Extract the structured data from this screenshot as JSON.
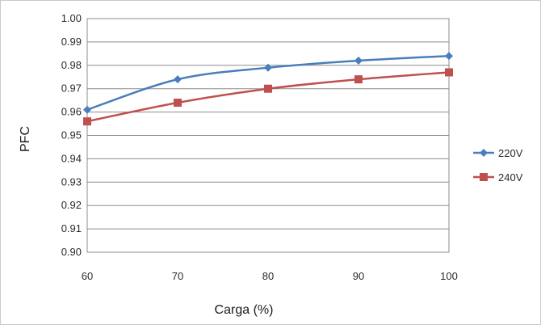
{
  "chart_data": {
    "type": "line",
    "title": "",
    "xlabel": "Carga (%)",
    "ylabel": "PFC",
    "x": [
      60,
      70,
      80,
      90,
      100
    ],
    "ylim": [
      0.9,
      1.0
    ],
    "y_ticks": [
      "0.90",
      "0.91",
      "0.92",
      "0.93",
      "0.94",
      "0.95",
      "0.96",
      "0.97",
      "0.98",
      "0.99",
      "1.00"
    ],
    "x_ticks": [
      "60",
      "70",
      "80",
      "90",
      "100"
    ],
    "grid": "horizontal",
    "legend_position": "right",
    "series": [
      {
        "name": "220V",
        "values": [
          0.961,
          0.974,
          0.979,
          0.982,
          0.984
        ],
        "color": "#4a7ebb",
        "marker": "diamond"
      },
      {
        "name": "240V",
        "values": [
          0.956,
          0.964,
          0.97,
          0.974,
          0.977
        ],
        "color": "#c0504d",
        "marker": "square"
      }
    ]
  }
}
